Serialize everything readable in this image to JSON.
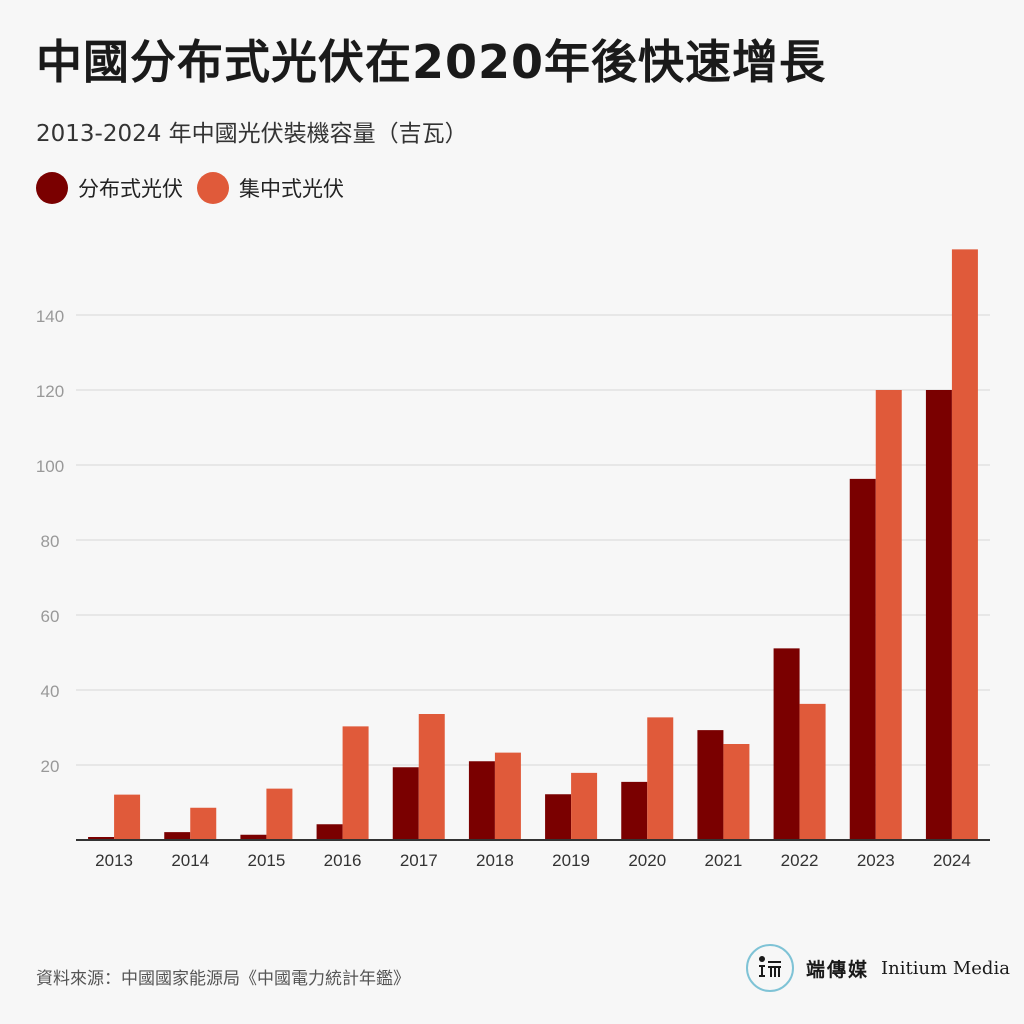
{
  "title": "中國分布式光伏在2020年後快速增長",
  "subtitle": "2013-2024 年中國光伏裝機容量（吉瓦）",
  "source": "資料來源：中國國家能源局《中國電力統計年鑑》",
  "brand": {
    "name": "端傳媒",
    "english": "Initium Media"
  },
  "colors": {
    "distributed": "#7a0000",
    "centralized": "#e05a3a",
    "grid": "#e2e2e2",
    "axis": "#333333",
    "tick": "#999999"
  },
  "chart_data": {
    "type": "bar",
    "categories": [
      "2013",
      "2014",
      "2015",
      "2016",
      "2017",
      "2018",
      "2019",
      "2020",
      "2021",
      "2022",
      "2023",
      "2024"
    ],
    "series": [
      {
        "name": "分布式光伏",
        "values": [
          0.8,
          2.1,
          1.4,
          4.2,
          19.4,
          21.0,
          12.2,
          15.5,
          29.3,
          51.1,
          96.3,
          120.0
        ]
      },
      {
        "name": "集中式光伏",
        "values": [
          12.1,
          8.6,
          13.7,
          30.3,
          33.6,
          23.3,
          17.9,
          32.7,
          25.6,
          36.3,
          120.0,
          157.5
        ]
      }
    ],
    "yticks": [
      20,
      40,
      60,
      80,
      100,
      120,
      140
    ],
    "ylim": [
      0,
      160
    ],
    "grid": true,
    "legend": "top-left"
  }
}
